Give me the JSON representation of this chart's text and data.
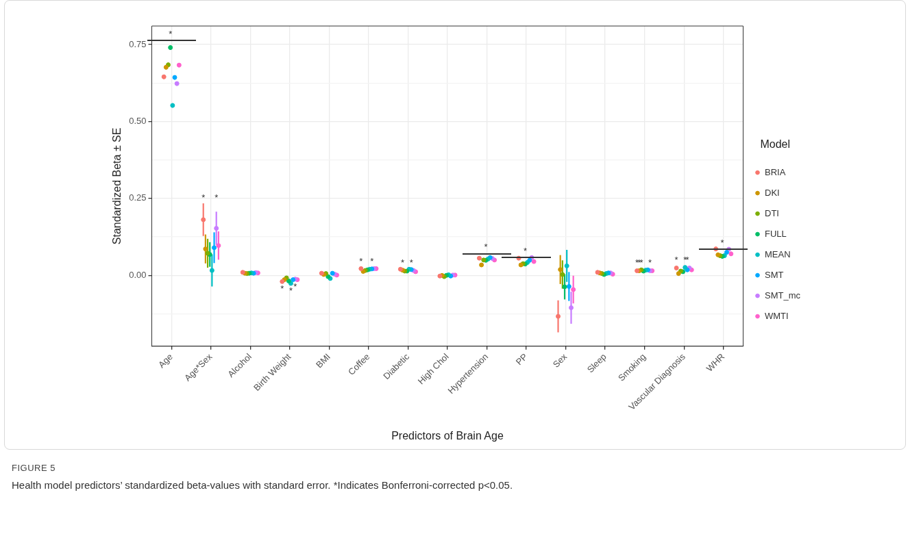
{
  "chart_data": {
    "type": "scatter",
    "title": "FIGURE 5",
    "xlabel": "Predictors of Brain Age",
    "ylabel": "Standardized Beta ± SE",
    "legend_title": "Model",
    "legend": "right",
    "grid": true,
    "marker": "circle",
    "categories": [
      "Age",
      "Age*Sex",
      "Alcohol",
      "Birth Weight",
      "BMI",
      "Coffee",
      "Diabetic",
      "High Chol",
      "Hypertension",
      "PP",
      "Sex",
      "Sleep",
      "Smoking",
      "Vascular Diagnosis",
      "WHR"
    ],
    "ylim": [
      -0.23,
      0.81
    ],
    "yticks": [
      {
        "value": -0.125,
        "label": null
      },
      {
        "value": 0,
        "label": "0.00"
      },
      {
        "value": 0.125,
        "label": null
      },
      {
        "value": 0.25,
        "label": "0.25"
      },
      {
        "value": 0.375,
        "label": null
      },
      {
        "value": 0.5,
        "label": "0.50"
      },
      {
        "value": 0.625,
        "label": null
      },
      {
        "value": 0.75,
        "label": "0.75"
      }
    ],
    "series": [
      {
        "name": "BRIA",
        "color": "#f8766d",
        "values": [
          0.645,
          0.181,
          0.01,
          -0.02,
          0.007,
          0.022,
          0.02,
          -0.002,
          0.056,
          0.056,
          -0.133,
          0.01,
          0.015,
          0.024,
          0.086
        ],
        "errors": [
          0.007,
          0.053,
          0.004,
          0.005,
          0.005,
          0.004,
          0.004,
          0.004,
          0.006,
          0.006,
          0.052,
          0.004,
          0.004,
          0.006,
          0.007
        ],
        "value_labels": [
          null,
          "*",
          null,
          "*",
          null,
          "*",
          null,
          null,
          null,
          null,
          null,
          null,
          "*",
          "*",
          null
        ]
      },
      {
        "name": "DKI",
        "color": "#cd9600",
        "values": [
          0.676,
          0.086,
          0.007,
          -0.014,
          0.003,
          0.013,
          0.017,
          0.0,
          0.034,
          0.034,
          0.019,
          0.008,
          0.015,
          0.006,
          0.067
        ],
        "errors": [
          0.007,
          0.047,
          0.004,
          0.005,
          0.005,
          0.004,
          0.004,
          0.004,
          0.006,
          0.006,
          0.047,
          0.004,
          0.004,
          0.006,
          0.007
        ],
        "value_labels": [
          null,
          null,
          null,
          null,
          null,
          null,
          "*",
          null,
          null,
          null,
          null,
          null,
          "*",
          null,
          null
        ]
      },
      {
        "name": "DTI",
        "color": "#7cae00",
        "values": [
          0.684,
          0.072,
          0.006,
          -0.008,
          0.006,
          0.016,
          0.014,
          -0.004,
          0.05,
          0.038,
          0.003,
          0.006,
          0.018,
          0.014,
          0.064
        ],
        "errors": [
          0.007,
          0.047,
          0.004,
          0.005,
          0.005,
          0.004,
          0.004,
          0.004,
          0.006,
          0.006,
          0.046,
          0.004,
          0.004,
          0.006,
          0.007
        ],
        "value_labels": [
          null,
          null,
          null,
          null,
          null,
          null,
          null,
          null,
          null,
          null,
          null,
          null,
          "*",
          null,
          null
        ]
      },
      {
        "name": "FULL",
        "color": "#00be67",
        "values": [
          0.74,
          0.068,
          0.007,
          -0.018,
          -0.004,
          0.018,
          0.014,
          0.0,
          0.049,
          0.037,
          -0.037,
          0.003,
          0.014,
          0.012,
          0.062
        ],
        "errors": [
          0.007,
          0.04,
          0.004,
          0.005,
          0.005,
          0.004,
          0.004,
          0.004,
          0.006,
          0.006,
          0.041,
          0.004,
          0.004,
          0.006,
          0.007
        ],
        "value_labels": [
          "*",
          null,
          null,
          null,
          null,
          null,
          null,
          null,
          "*",
          "*",
          null,
          null,
          null,
          null,
          "*"
        ]
      },
      {
        "name": "MEAN",
        "color": "#00bfc4",
        "values": [
          0.552,
          0.016,
          0.008,
          -0.026,
          -0.01,
          0.02,
          0.02,
          0.002,
          0.053,
          0.042,
          0.031,
          0.006,
          0.017,
          0.026,
          0.064
        ],
        "errors": [
          0.007,
          0.052,
          0.004,
          0.005,
          0.005,
          0.004,
          0.004,
          0.004,
          0.006,
          0.006,
          0.052,
          0.004,
          0.004,
          0.006,
          0.007
        ],
        "value_labels": [
          null,
          null,
          null,
          "*",
          null,
          null,
          null,
          null,
          null,
          null,
          null,
          null,
          null,
          "*",
          null
        ]
      },
      {
        "name": "SMT",
        "color": "#00a9ff",
        "values": [
          0.643,
          0.09,
          0.007,
          -0.014,
          0.007,
          0.021,
          0.019,
          -0.002,
          0.058,
          0.049,
          -0.036,
          0.008,
          0.018,
          0.018,
          0.075
        ],
        "errors": [
          0.007,
          0.05,
          0.004,
          0.005,
          0.005,
          0.004,
          0.004,
          0.004,
          0.006,
          0.006,
          0.047,
          0.004,
          0.004,
          0.006,
          0.007
        ],
        "value_labels": [
          null,
          null,
          null,
          null,
          null,
          "*",
          "*",
          null,
          null,
          null,
          null,
          null,
          null,
          "*",
          null
        ]
      },
      {
        "name": "SMT_mc",
        "color": "#c77cff",
        "values": [
          0.623,
          0.153,
          0.009,
          -0.012,
          0.004,
          0.022,
          0.016,
          0.001,
          0.055,
          0.058,
          -0.105,
          0.008,
          0.015,
          0.024,
          0.085
        ],
        "errors": [
          0.007,
          0.054,
          0.004,
          0.005,
          0.005,
          0.004,
          0.004,
          0.004,
          0.006,
          0.006,
          0.052,
          0.004,
          0.004,
          0.006,
          0.007
        ],
        "value_labels": [
          null,
          "*",
          null,
          "*",
          null,
          null,
          null,
          null,
          null,
          null,
          null,
          null,
          "*",
          null,
          null
        ]
      },
      {
        "name": "WMTI",
        "color": "#ff61cc",
        "values": [
          0.683,
          0.097,
          0.008,
          -0.014,
          0.001,
          0.022,
          0.012,
          0.001,
          0.05,
          0.045,
          -0.046,
          0.004,
          0.015,
          0.018,
          0.07
        ],
        "errors": [
          0.007,
          0.046,
          0.004,
          0.005,
          0.005,
          0.004,
          0.004,
          0.004,
          0.006,
          0.006,
          0.045,
          0.004,
          0.004,
          0.006,
          0.007
        ]
      }
    ],
    "annotations": [
      "Health model predictors’ standardized beta-values with standard error. *Indicates Bonferroni-corrected p<0.05."
    ]
  }
}
